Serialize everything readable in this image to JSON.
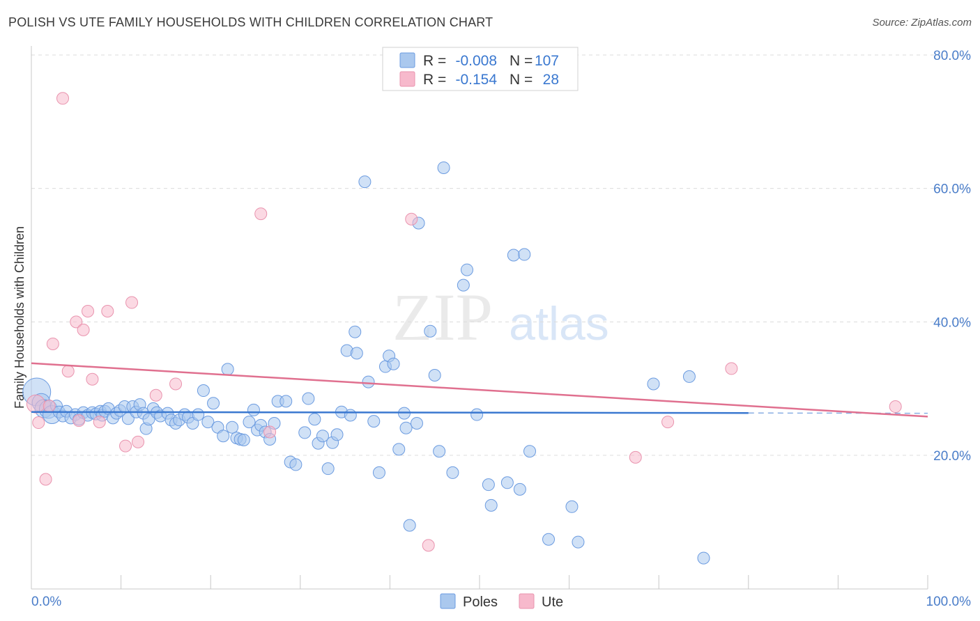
{
  "title": "POLISH VS UTE FAMILY HOUSEHOLDS WITH CHILDREN CORRELATION CHART",
  "source": "Source: ZipAtlas.com",
  "watermark": {
    "zip": "ZIP",
    "atlas": "atlas"
  },
  "legend": {
    "r_label": "R =",
    "n_label": "N =",
    "rows": [
      {
        "r": "-0.008",
        "n": "107"
      },
      {
        "r": "-0.154",
        "n": "28"
      }
    ]
  },
  "bottom_legend": [
    "Poles",
    "Ute"
  ],
  "colors": {
    "poles_fill": "#aac8ee",
    "poles_stroke": "#6b9be0",
    "poles_line": "#3a78d0",
    "ute_fill": "#f7b9cc",
    "ute_stroke": "#e993ae",
    "ute_line": "#e0708f",
    "value_text": "#3a78d0",
    "label_text": "#333333"
  },
  "chart_data": {
    "type": "scatter",
    "title": "POLISH VS UTE FAMILY HOUSEHOLDS WITH CHILDREN CORRELATION CHART",
    "xlabel": "",
    "ylabel": "Family Households with Children",
    "xlim": [
      0,
      100
    ],
    "ylim": [
      0,
      82
    ],
    "x_tick_labels": [
      "0.0%",
      "100.0%"
    ],
    "y_ticks": [
      20,
      40,
      60,
      80
    ],
    "y_tick_labels": [
      "20.0%",
      "40.0%",
      "60.0%",
      "80.0%"
    ],
    "grid": true,
    "legend_position": "top-center",
    "series": [
      {
        "name": "Poles",
        "r": -0.008,
        "n": 107,
        "trend": {
          "x0": 0,
          "y0": 26.5,
          "x1": 100,
          "y1": 26.3,
          "solid_until": 80
        },
        "points": [
          [
            0.6,
            29.5,
            3
          ],
          [
            1.1,
            27.9,
            2
          ],
          [
            1.4,
            27.0,
            2
          ],
          [
            1.9,
            26.9,
            2
          ],
          [
            2.3,
            26.1,
            2
          ],
          [
            2.8,
            27.4,
            1
          ],
          [
            3.1,
            26.5,
            1
          ],
          [
            3.5,
            25.9,
            1
          ],
          [
            3.9,
            26.6,
            1
          ],
          [
            4.4,
            25.6,
            1
          ],
          [
            4.9,
            26.1,
            1
          ],
          [
            5.3,
            25.4,
            1
          ],
          [
            5.8,
            26.4,
            1
          ],
          [
            6.3,
            26.0,
            1
          ],
          [
            6.8,
            26.4,
            1
          ],
          [
            7.2,
            26.2,
            1
          ],
          [
            7.7,
            26.6,
            1
          ],
          [
            7.9,
            26.0,
            1
          ],
          [
            8.2,
            26.6,
            1
          ],
          [
            8.6,
            27.0,
            1
          ],
          [
            9.1,
            25.6,
            1
          ],
          [
            9.5,
            26.3,
            1
          ],
          [
            9.9,
            26.7,
            1
          ],
          [
            10.4,
            27.3,
            1
          ],
          [
            10.8,
            25.5,
            1
          ],
          [
            11.3,
            27.3,
            1
          ],
          [
            11.7,
            26.5,
            1
          ],
          [
            12.1,
            27.6,
            1
          ],
          [
            12.5,
            26.3,
            1
          ],
          [
            12.8,
            24.0,
            1
          ],
          [
            13.1,
            25.4,
            1
          ],
          [
            13.6,
            27.0,
            1
          ],
          [
            14.0,
            26.4,
            1
          ],
          [
            14.4,
            25.9,
            1
          ],
          [
            15.2,
            26.3,
            1
          ],
          [
            15.6,
            25.3,
            1
          ],
          [
            16.1,
            24.8,
            1
          ],
          [
            16.5,
            25.3,
            1
          ],
          [
            17.1,
            26.1,
            1
          ],
          [
            17.5,
            25.7,
            1
          ],
          [
            18.0,
            24.8,
            1
          ],
          [
            18.6,
            26.1,
            1
          ],
          [
            19.2,
            29.7,
            1
          ],
          [
            19.7,
            25.0,
            1
          ],
          [
            20.3,
            27.8,
            1
          ],
          [
            20.8,
            24.2,
            1
          ],
          [
            21.4,
            22.9,
            1
          ],
          [
            21.9,
            32.9,
            1
          ],
          [
            22.4,
            24.2,
            1
          ],
          [
            22.9,
            22.6,
            1
          ],
          [
            23.3,
            22.4,
            1
          ],
          [
            23.7,
            22.3,
            1
          ],
          [
            24.3,
            25.0,
            1
          ],
          [
            24.8,
            26.8,
            1
          ],
          [
            25.2,
            23.8,
            1
          ],
          [
            25.6,
            24.5,
            1
          ],
          [
            26.1,
            23.5,
            1
          ],
          [
            26.6,
            22.4,
            1
          ],
          [
            27.1,
            24.8,
            1
          ],
          [
            27.5,
            28.1,
            1
          ],
          [
            28.4,
            28.1,
            1
          ],
          [
            28.9,
            19.0,
            1
          ],
          [
            29.5,
            18.6,
            1
          ],
          [
            30.5,
            23.4,
            1
          ],
          [
            30.9,
            28.5,
            1
          ],
          [
            31.6,
            25.4,
            1
          ],
          [
            32.0,
            21.8,
            1
          ],
          [
            32.5,
            22.9,
            1
          ],
          [
            33.1,
            18.0,
            1
          ],
          [
            33.6,
            21.9,
            1
          ],
          [
            34.1,
            23.1,
            1
          ],
          [
            34.6,
            26.5,
            1
          ],
          [
            35.2,
            35.7,
            1
          ],
          [
            35.6,
            26.0,
            1
          ],
          [
            36.1,
            38.5,
            1
          ],
          [
            36.3,
            35.3,
            1
          ],
          [
            37.2,
            61.0,
            1
          ],
          [
            37.6,
            31.0,
            1
          ],
          [
            38.2,
            25.1,
            1
          ],
          [
            38.8,
            17.4,
            1
          ],
          [
            39.5,
            33.3,
            1
          ],
          [
            39.9,
            34.9,
            1
          ],
          [
            40.4,
            33.7,
            1
          ],
          [
            41.0,
            20.9,
            1
          ],
          [
            41.6,
            26.3,
            1
          ],
          [
            41.8,
            24.1,
            1
          ],
          [
            42.2,
            9.5,
            1
          ],
          [
            43.0,
            24.8,
            1
          ],
          [
            43.2,
            54.8,
            1
          ],
          [
            44.5,
            38.6,
            1
          ],
          [
            45.0,
            32.0,
            1
          ],
          [
            45.5,
            20.6,
            1
          ],
          [
            46.0,
            63.1,
            1
          ],
          [
            47.0,
            17.4,
            1
          ],
          [
            48.2,
            45.5,
            1
          ],
          [
            48.6,
            47.8,
            1
          ],
          [
            49.7,
            26.1,
            1
          ],
          [
            51.0,
            15.6,
            1
          ],
          [
            51.3,
            12.5,
            1
          ],
          [
            53.1,
            15.9,
            1
          ],
          [
            53.8,
            50.0,
            1
          ],
          [
            54.5,
            14.9,
            1
          ],
          [
            55.0,
            50.1,
            1
          ],
          [
            55.6,
            20.6,
            1
          ],
          [
            57.7,
            7.4,
            1
          ],
          [
            60.3,
            12.3,
            1
          ],
          [
            61.0,
            7.0,
            1
          ],
          [
            69.4,
            30.7,
            1
          ],
          [
            73.4,
            31.8,
            1
          ],
          [
            75.0,
            4.6,
            1
          ]
        ]
      },
      {
        "name": "Ute",
        "r": -0.154,
        "n": 28,
        "trend": {
          "x0": 0,
          "y0": 33.8,
          "x1": 100,
          "y1": 25.8
        },
        "points": [
          [
            0.5,
            27.7,
            2
          ],
          [
            0.8,
            24.9,
            1
          ],
          [
            1.6,
            16.4,
            1
          ],
          [
            2.0,
            27.4,
            1
          ],
          [
            2.4,
            36.7,
            1
          ],
          [
            3.5,
            73.5,
            1
          ],
          [
            4.1,
            32.6,
            1
          ],
          [
            5.0,
            40.0,
            1
          ],
          [
            5.3,
            25.2,
            1
          ],
          [
            5.8,
            38.8,
            1
          ],
          [
            6.3,
            41.6,
            1
          ],
          [
            6.8,
            31.4,
            1
          ],
          [
            7.6,
            25.0,
            1
          ],
          [
            8.5,
            41.6,
            1
          ],
          [
            10.5,
            21.4,
            1
          ],
          [
            11.2,
            42.9,
            1
          ],
          [
            11.9,
            22.0,
            1
          ],
          [
            13.9,
            29.0,
            1
          ],
          [
            16.1,
            30.7,
            1
          ],
          [
            25.6,
            56.2,
            1
          ],
          [
            26.6,
            23.5,
            1
          ],
          [
            42.4,
            55.4,
            1
          ],
          [
            44.3,
            6.5,
            1
          ],
          [
            67.4,
            19.7,
            1
          ],
          [
            71.0,
            25.0,
            1
          ],
          [
            78.1,
            33.0,
            1
          ],
          [
            96.4,
            27.3,
            1
          ]
        ]
      }
    ]
  }
}
